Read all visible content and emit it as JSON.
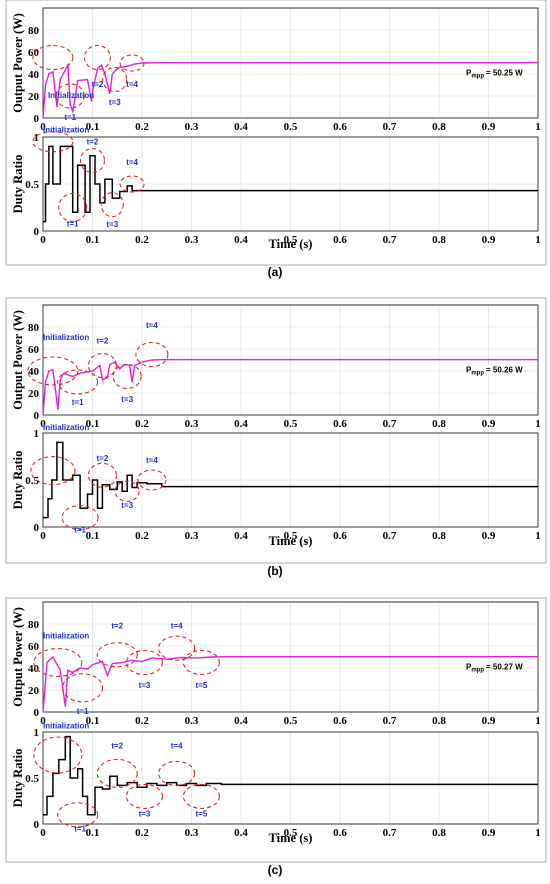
{
  "figure": {
    "power_ylabel": "Output Power (W)",
    "duty_ylabel": "Duty Ratio",
    "xlabel": "Time (s)",
    "x_ticks": [
      "0",
      "0.1",
      "0.2",
      "0.3",
      "0.4",
      "0.5",
      "0.6",
      "0.7",
      "0.8",
      "0.9",
      "1"
    ],
    "power_ticks": [
      "0",
      "20",
      "40",
      "60",
      "80"
    ],
    "duty_ticks_ab": [
      "0",
      "0.5",
      "1"
    ],
    "duty_ticks_c": [
      "0",
      "0.5",
      "1"
    ]
  },
  "chart_data": [
    {
      "type": "line",
      "panel_label": "(a)",
      "power": {
        "ylabel": "Output Power (W)",
        "ylim": [
          0,
          100
        ],
        "x": [
          0,
          0.005,
          0.012,
          0.02,
          0.028,
          0.035,
          0.05,
          0.055,
          0.06,
          0.068,
          0.07,
          0.09,
          0.098,
          0.1,
          0.11,
          0.118,
          0.125,
          0.135,
          0.14,
          0.148,
          0.155,
          0.17,
          0.185,
          0.2,
          0.25,
          1.0
        ],
        "y": [
          0,
          30,
          40,
          42,
          10,
          35,
          48,
          12,
          6,
          28,
          34,
          35,
          15,
          24,
          45,
          48,
          40,
          22,
          40,
          44,
          46,
          47,
          49,
          50,
          50.25,
          50.25
        ],
        "mpp_label": "P",
        "mpp_subscript": "mpp",
        "mpp_value": "= 50.25 W",
        "annotations": [
          "Initialization",
          "t=1",
          "t=2",
          "t=3",
          "t=4"
        ]
      },
      "duty": {
        "ylabel": "Duty Ratio",
        "ylim": [
          0,
          1
        ],
        "steps": [
          [
            0,
            0.1
          ],
          [
            0.005,
            0.5
          ],
          [
            0.012,
            0.9
          ],
          [
            0.02,
            0.5
          ],
          [
            0.035,
            0.9
          ],
          [
            0.055,
            0.9
          ],
          [
            0.06,
            0.2
          ],
          [
            0.07,
            0.7
          ],
          [
            0.085,
            0.2
          ],
          [
            0.095,
            0.8
          ],
          [
            0.105,
            0.5
          ],
          [
            0.115,
            0.3
          ],
          [
            0.125,
            0.55
          ],
          [
            0.14,
            0.35
          ],
          [
            0.155,
            0.42
          ],
          [
            0.17,
            0.48
          ],
          [
            0.18,
            0.43
          ],
          [
            0.2,
            0.43
          ],
          [
            1.0,
            0.43
          ]
        ],
        "annotations": [
          "Initialization",
          "t=1",
          "t=2",
          "t=3",
          "t=4"
        ]
      },
      "xlabel": "Time (s)",
      "xlim": [
        0,
        1
      ]
    },
    {
      "type": "line",
      "panel_label": "(b)",
      "power": {
        "ylabel": "Output Power (W)",
        "ylim": [
          0,
          100
        ],
        "x": [
          0,
          0.005,
          0.012,
          0.02,
          0.03,
          0.035,
          0.042,
          0.06,
          0.075,
          0.1,
          0.115,
          0.12,
          0.13,
          0.135,
          0.145,
          0.155,
          0.165,
          0.175,
          0.18,
          0.185,
          0.2,
          0.22,
          0.24,
          1.0
        ],
        "y": [
          0,
          30,
          40,
          41,
          5,
          32,
          38,
          35,
          38,
          40,
          45,
          32,
          34,
          46,
          48,
          42,
          46,
          45,
          30,
          45,
          48,
          50,
          50.26,
          50.26
        ],
        "mpp_label": "P",
        "mpp_subscript": "mpp",
        "mpp_value": "= 50.26 W",
        "annotations": [
          "Initialization",
          "t=1",
          "t=2",
          "t=3",
          "t=4"
        ]
      },
      "duty": {
        "ylabel": "Duty Ratio",
        "ylim": [
          0,
          1
        ],
        "steps": [
          [
            0,
            0.1
          ],
          [
            0.01,
            0.3
          ],
          [
            0.018,
            0.5
          ],
          [
            0.028,
            0.9
          ],
          [
            0.04,
            0.5
          ],
          [
            0.06,
            0.55
          ],
          [
            0.075,
            0.2
          ],
          [
            0.09,
            0.35
          ],
          [
            0.1,
            0.5
          ],
          [
            0.11,
            0.2
          ],
          [
            0.12,
            0.45
          ],
          [
            0.135,
            0.4
          ],
          [
            0.15,
            0.48
          ],
          [
            0.16,
            0.38
          ],
          [
            0.17,
            0.55
          ],
          [
            0.18,
            0.42
          ],
          [
            0.19,
            0.47
          ],
          [
            0.21,
            0.46
          ],
          [
            0.24,
            0.43
          ],
          [
            1.0,
            0.43
          ]
        ],
        "annotations": [
          "Initialization",
          "t=1",
          "t=2",
          "t=3",
          "t=4"
        ]
      },
      "xlabel": "Time (s)",
      "xlim": [
        0,
        1
      ]
    },
    {
      "type": "line",
      "panel_label": "(c)",
      "power": {
        "ylabel": "Output Power (W)",
        "ylim": [
          0,
          100
        ],
        "x": [
          0,
          0.008,
          0.02,
          0.035,
          0.045,
          0.05,
          0.06,
          0.075,
          0.09,
          0.1,
          0.12,
          0.13,
          0.14,
          0.16,
          0.18,
          0.2,
          0.22,
          0.25,
          0.28,
          0.31,
          0.34,
          0.37,
          1.0
        ],
        "y": [
          0,
          45,
          50,
          38,
          5,
          38,
          36,
          40,
          39,
          43,
          46,
          33,
          44,
          45,
          47,
          46,
          49,
          48,
          49.5,
          49,
          50,
          50.27,
          50.27
        ],
        "mpp_label": "P",
        "mpp_subscript": "mpp",
        "mpp_value": "= 50.27 W",
        "annotations": [
          "Initialization",
          "t=1",
          "t=2",
          "t=3",
          "t=4",
          "t=5"
        ]
      },
      "duty": {
        "ylabel": "Duty Ratio",
        "ylim": [
          0,
          1
        ],
        "steps": [
          [
            0,
            0.1
          ],
          [
            0.008,
            0.3
          ],
          [
            0.02,
            0.55
          ],
          [
            0.032,
            0.7
          ],
          [
            0.045,
            0.95
          ],
          [
            0.055,
            0.5
          ],
          [
            0.07,
            0.6
          ],
          [
            0.08,
            0.3
          ],
          [
            0.09,
            0.1
          ],
          [
            0.105,
            0.4
          ],
          [
            0.12,
            0.38
          ],
          [
            0.135,
            0.52
          ],
          [
            0.15,
            0.42
          ],
          [
            0.17,
            0.45
          ],
          [
            0.19,
            0.4
          ],
          [
            0.21,
            0.44
          ],
          [
            0.23,
            0.42
          ],
          [
            0.25,
            0.45
          ],
          [
            0.27,
            0.42
          ],
          [
            0.29,
            0.44
          ],
          [
            0.31,
            0.42
          ],
          [
            0.33,
            0.44
          ],
          [
            0.36,
            0.43
          ],
          [
            1.0,
            0.43
          ]
        ],
        "annotations": [
          "Initialization",
          "t=1",
          "t=2",
          "t=3",
          "t=4",
          "t=5"
        ]
      },
      "xlabel": "Time (s)",
      "xlim": [
        0,
        1
      ]
    }
  ]
}
